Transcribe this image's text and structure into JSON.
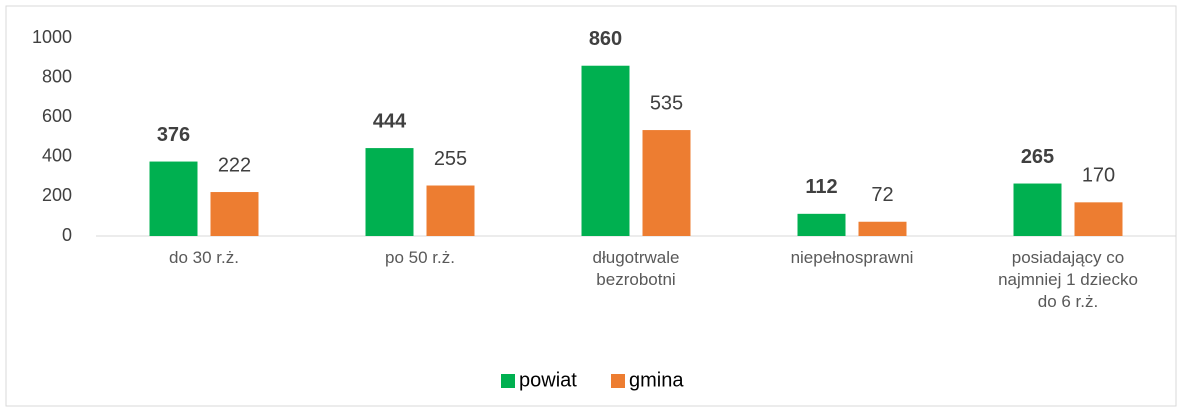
{
  "chart_data": {
    "type": "bar",
    "categories": [
      "do 30 r.ż.",
      "po 50 r.ż.",
      "długotrwale bezrobotni",
      "niepełnosprawni",
      "posiadający co najmniej 1 dziecko do 6 r.ż."
    ],
    "series": [
      {
        "name": "powiat",
        "color": "#00b050",
        "values": [
          376,
          444,
          860,
          112,
          265
        ]
      },
      {
        "name": "gmina",
        "color": "#ed7d31",
        "values": [
          222,
          255,
          535,
          72,
          170
        ]
      }
    ],
    "ylim": [
      0,
      1000
    ],
    "yticks": [
      0,
      200,
      400,
      600,
      800,
      1000
    ],
    "grid": false,
    "legend": "bottom"
  }
}
